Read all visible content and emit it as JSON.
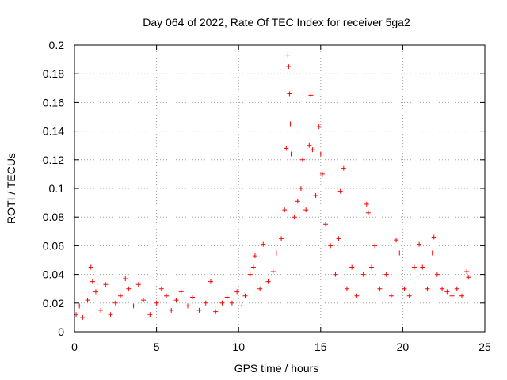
{
  "chart_data": {
    "type": "scatter",
    "title": "Day 064 of 2022, Rate Of TEC Index for receiver 5ga2",
    "xlabel": "GPS time / hours",
    "ylabel": "ROTI / TECUs",
    "xlim": [
      0,
      25
    ],
    "ylim": [
      0,
      0.2
    ],
    "x_ticks": [
      0,
      5,
      10,
      15,
      20,
      25
    ],
    "x_tick_labels": [
      "0",
      "5",
      "10",
      "15",
      "20",
      "25"
    ],
    "y_ticks": [
      0,
      0.02,
      0.04,
      0.06,
      0.08,
      0.1,
      0.12,
      0.14,
      0.16,
      0.18,
      0.2
    ],
    "y_tick_labels": [
      "0",
      "0.02",
      "0.04",
      "0.06",
      "0.08",
      "0.1",
      "0.12",
      "0.14",
      "0.16",
      "0.18",
      "0.2"
    ],
    "grid": true,
    "marker": "+",
    "color": "#ff0000",
    "series": [
      {
        "name": "ROTI",
        "points": [
          [
            0.1,
            0.012
          ],
          [
            0.3,
            0.018
          ],
          [
            0.5,
            0.01
          ],
          [
            0.8,
            0.022
          ],
          [
            1.0,
            0.045
          ],
          [
            1.1,
            0.035
          ],
          [
            1.3,
            0.028
          ],
          [
            1.6,
            0.015
          ],
          [
            1.9,
            0.033
          ],
          [
            2.2,
            0.012
          ],
          [
            2.5,
            0.02
          ],
          [
            2.8,
            0.025
          ],
          [
            3.1,
            0.037
          ],
          [
            3.3,
            0.03
          ],
          [
            3.6,
            0.018
          ],
          [
            3.9,
            0.033
          ],
          [
            4.2,
            0.022
          ],
          [
            4.6,
            0.012
          ],
          [
            5.0,
            0.02
          ],
          [
            5.3,
            0.03
          ],
          [
            5.6,
            0.025
          ],
          [
            5.9,
            0.015
          ],
          [
            6.2,
            0.022
          ],
          [
            6.5,
            0.028
          ],
          [
            6.9,
            0.018
          ],
          [
            7.2,
            0.024
          ],
          [
            7.6,
            0.015
          ],
          [
            8.0,
            0.02
          ],
          [
            8.3,
            0.035
          ],
          [
            8.6,
            0.014
          ],
          [
            9.0,
            0.02
          ],
          [
            9.3,
            0.024
          ],
          [
            9.6,
            0.02
          ],
          [
            9.9,
            0.028
          ],
          [
            10.2,
            0.018
          ],
          [
            10.4,
            0.025
          ],
          [
            10.7,
            0.04
          ],
          [
            10.9,
            0.045
          ],
          [
            11.0,
            0.053
          ],
          [
            11.3,
            0.03
          ],
          [
            11.5,
            0.061
          ],
          [
            11.8,
            0.035
          ],
          [
            12.1,
            0.042
          ],
          [
            12.3,
            0.055
          ],
          [
            12.6,
            0.065
          ],
          [
            12.8,
            0.085
          ],
          [
            12.9,
            0.128
          ],
          [
            13.0,
            0.193
          ],
          [
            13.05,
            0.185
          ],
          [
            13.1,
            0.166
          ],
          [
            13.15,
            0.145
          ],
          [
            13.2,
            0.124
          ],
          [
            13.4,
            0.08
          ],
          [
            13.6,
            0.091
          ],
          [
            13.8,
            0.1
          ],
          [
            13.9,
            0.12
          ],
          [
            14.1,
            0.085
          ],
          [
            14.3,
            0.13
          ],
          [
            14.4,
            0.165
          ],
          [
            14.5,
            0.127
          ],
          [
            14.7,
            0.095
          ],
          [
            14.9,
            0.143
          ],
          [
            15.0,
            0.124
          ],
          [
            15.1,
            0.11
          ],
          [
            15.3,
            0.075
          ],
          [
            15.6,
            0.06
          ],
          [
            15.9,
            0.04
          ],
          [
            16.1,
            0.065
          ],
          [
            16.2,
            0.098
          ],
          [
            16.4,
            0.114
          ],
          [
            16.6,
            0.03
          ],
          [
            16.9,
            0.045
          ],
          [
            17.2,
            0.025
          ],
          [
            17.6,
            0.04
          ],
          [
            17.8,
            0.089
          ],
          [
            17.9,
            0.083
          ],
          [
            18.1,
            0.045
          ],
          [
            18.3,
            0.06
          ],
          [
            18.6,
            0.03
          ],
          [
            19.0,
            0.04
          ],
          [
            19.3,
            0.025
          ],
          [
            19.6,
            0.064
          ],
          [
            19.8,
            0.055
          ],
          [
            20.1,
            0.03
          ],
          [
            20.4,
            0.025
          ],
          [
            20.7,
            0.045
          ],
          [
            21.0,
            0.061
          ],
          [
            21.2,
            0.045
          ],
          [
            21.5,
            0.03
          ],
          [
            21.8,
            0.055
          ],
          [
            21.9,
            0.066
          ],
          [
            22.1,
            0.04
          ],
          [
            22.4,
            0.03
          ],
          [
            22.7,
            0.028
          ],
          [
            23.0,
            0.025
          ],
          [
            23.3,
            0.03
          ],
          [
            23.6,
            0.025
          ],
          [
            23.9,
            0.042
          ],
          [
            24.0,
            0.038
          ]
        ]
      }
    ]
  }
}
